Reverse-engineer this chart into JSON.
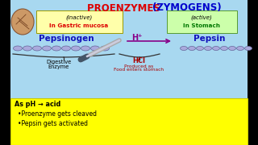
{
  "title_proenzymes": "PROENZYMES ",
  "title_zymogens": "(ZYMOGENS)",
  "bg_color": "#a8d8f0",
  "outer_bg": "#000000",
  "inactive_box_color": "#ffffaa",
  "active_box_color": "#ccffaa",
  "inactive_label": "(inactive)",
  "inactive_sublabel": "In Gastric mucosa",
  "active_label": "(active)",
  "active_sublabel": "In Stomach",
  "pepsinogen_label": "Pepsinogen",
  "pepsin_label": "Pepsin",
  "h_plus_label": "H⁺",
  "hcl_label": "HCl",
  "hcl_sub1": "Produced as",
  "hcl_sub2": "Food enters stomach",
  "digestive_label1": "Digestive",
  "digestive_label2": "Enzyme",
  "bottom_box_color": "#ffff00",
  "bottom_text_line1": "As pH → acid",
  "bottom_text_line2": "•Proenzyme gets cleaved",
  "bottom_text_line3": "•Pepsin gets activated",
  "color_red": "#dd0000",
  "color_blue": "#0000cc",
  "color_blue2": "#1111bb",
  "color_green": "#007700",
  "color_purple": "#880088",
  "color_darkred": "#aa0000",
  "color_chain": "#aaaadd",
  "color_chain_edge": "#666699",
  "color_black": "#000000",
  "color_brace": "#333333",
  "organ_color": "#cc9966",
  "knife_color": "#aaaaaa",
  "knife_edge": "#445566"
}
